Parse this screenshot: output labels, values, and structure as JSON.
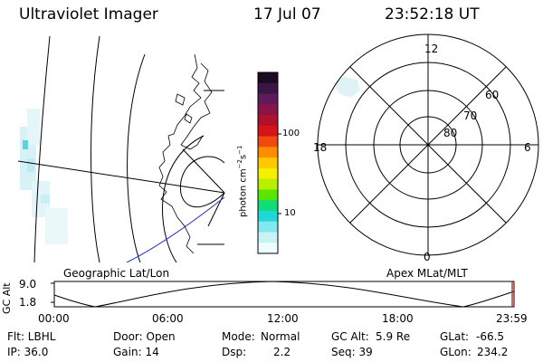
{
  "header": {
    "instrument": "Ultraviolet Imager",
    "date": "17 Jul 07",
    "time": "23:52:18 UT"
  },
  "colorbar": {
    "unit_label": "photon cm",
    "unit_exp1": "−2",
    "unit_s": "s",
    "unit_exp2": "−1",
    "ticks": [
      "100",
      "10"
    ],
    "colors_top_to_bottom": [
      "#1a0a22",
      "#3a1646",
      "#5e1a5c",
      "#8a1448",
      "#b0122e",
      "#d8141a",
      "#f04a10",
      "#ff8c00",
      "#ffc800",
      "#f4f000",
      "#b8f000",
      "#5ae600",
      "#10dc78",
      "#20d8d8",
      "#80e8ee",
      "#c8f2f6",
      "#eefcfd"
    ]
  },
  "geo_panel": {
    "label": "Geographic Lat/Lon"
  },
  "polar_panel": {
    "label": "Apex MLat/MLT",
    "mlt_labels": {
      "top": "12",
      "bottom": "0",
      "left": "18",
      "right": "6"
    },
    "lat_labels": [
      "60",
      "70",
      "80"
    ]
  },
  "altitude_plot": {
    "ylabel": "GC Alt",
    "yticks": [
      "9.0",
      "1.8"
    ],
    "xticks": [
      "00:00",
      "06:00",
      "12:00",
      "18:00",
      "23:59"
    ]
  },
  "info": {
    "filter": "Flt: LBHL",
    "door": "Door: Open",
    "mode_label": "Mode:",
    "mode_value": "Normal",
    "gc_alt_label": "GC Alt:",
    "gc_alt_value": "5.9 Re",
    "glat_label": "GLat:",
    "glat_value": "-66.5",
    "ip": "IP: 36.0",
    "gain": "Gain: 14",
    "dsp_label": "Dsp:",
    "dsp_value": "2.2",
    "seq": "Seq: 39",
    "glon_label": "GLon:",
    "glon_value": "234.2"
  }
}
